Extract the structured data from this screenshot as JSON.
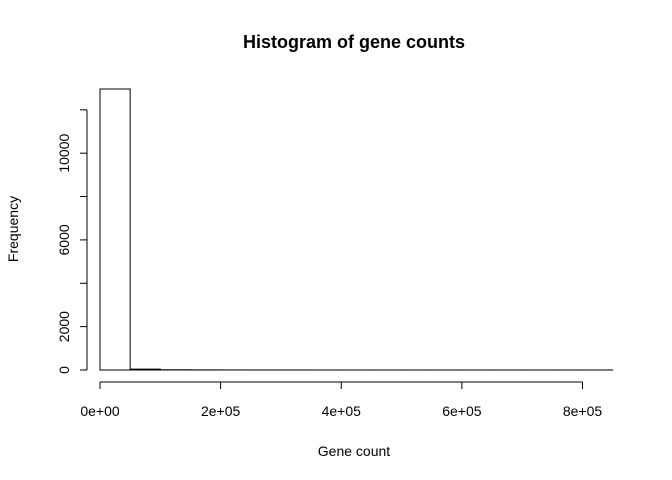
{
  "chart_data": {
    "type": "bar",
    "title": "Histogram of gene counts",
    "xlabel": "Gene count",
    "ylabel": "Frequency",
    "bin_edges": [
      0,
      50000,
      100000,
      150000,
      200000,
      250000,
      300000,
      350000,
      400000,
      450000,
      500000,
      550000,
      600000,
      650000,
      700000,
      750000,
      800000,
      850000
    ],
    "values": [
      12960,
      40,
      10,
      5,
      3,
      2,
      2,
      1,
      1,
      1,
      1,
      1,
      1,
      1,
      1,
      1,
      1
    ],
    "xlim": [
      0,
      850000
    ],
    "ylim": [
      0,
      12960
    ],
    "xticks": [
      0,
      200000,
      400000,
      600000,
      800000
    ],
    "xtick_labels": [
      "0e+00",
      "2e+05",
      "4e+05",
      "6e+05",
      "8e+05"
    ],
    "yticks": [
      0,
      2000,
      4000,
      6000,
      8000,
      10000,
      12000
    ],
    "ytick_labels": [
      "0",
      "2000",
      "6000",
      "10000"
    ],
    "ytick_labels_at": [
      0,
      2000,
      6000,
      10000
    ],
    "grid": false,
    "legend": "none"
  }
}
